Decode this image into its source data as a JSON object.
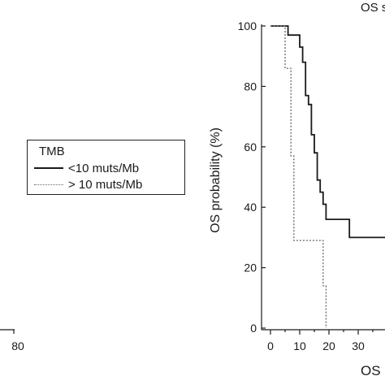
{
  "chart_data": {
    "type": "line",
    "chart_kind": "kaplan-meier step curves",
    "ylabel": "OS probability (%)",
    "xlabel_visible": "OS (",
    "title_fragment": "OS s",
    "ylim": [
      0,
      100
    ],
    "xlim": [
      0,
      45
    ],
    "y_ticks": [
      "0",
      "20",
      "40",
      "60",
      "80",
      "100"
    ],
    "x_ticks": [
      "0",
      "10",
      "20",
      "30"
    ],
    "x_tick_values": [
      0,
      5,
      10,
      15,
      20,
      25,
      30,
      35,
      40
    ],
    "grid": false,
    "left_panel_tick_label": "80",
    "legend": {
      "title": "TMB",
      "placement": "left-middle",
      "entries": [
        {
          "label": "<10 muts/Mb",
          "style": "solid"
        },
        {
          "label": "> 10 muts/Mb",
          "style": "dotted"
        }
      ]
    },
    "series": [
      {
        "name": "<10 muts/Mb",
        "style": "solid",
        "color": "#1a1a1a",
        "steps": [
          [
            0,
            100
          ],
          [
            6,
            100
          ],
          [
            6,
            97
          ],
          [
            10,
            97
          ],
          [
            10,
            93
          ],
          [
            11,
            93
          ],
          [
            11,
            88
          ],
          [
            12,
            88
          ],
          [
            12,
            77
          ],
          [
            13,
            77
          ],
          [
            13,
            74
          ],
          [
            14,
            74
          ],
          [
            14,
            64
          ],
          [
            15,
            64
          ],
          [
            15,
            58
          ],
          [
            16,
            58
          ],
          [
            16,
            49
          ],
          [
            17,
            49
          ],
          [
            17,
            45
          ],
          [
            18,
            45
          ],
          [
            18,
            41
          ],
          [
            19,
            41
          ],
          [
            19,
            36
          ],
          [
            27,
            36
          ],
          [
            27,
            30
          ],
          [
            45,
            30
          ]
        ]
      },
      {
        "name": "> 10 muts/Mb",
        "style": "dotted",
        "color": "#666666",
        "steps": [
          [
            0,
            100
          ],
          [
            5,
            100
          ],
          [
            5,
            86
          ],
          [
            7,
            86
          ],
          [
            7,
            57
          ],
          [
            8,
            57
          ],
          [
            8,
            29
          ],
          [
            18,
            29
          ],
          [
            18,
            14
          ],
          [
            19,
            14
          ],
          [
            19,
            0
          ]
        ]
      }
    ]
  }
}
